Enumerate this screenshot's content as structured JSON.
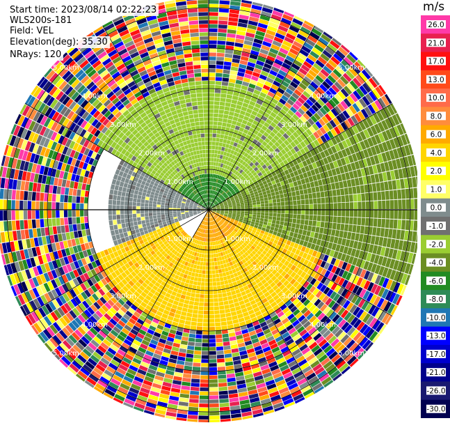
{
  "header": {
    "start_time": "Start time: 2023/08/14 02:22:23",
    "instrument": "WLS200s-181",
    "field": "Field: VEL",
    "elevation": "Elevation(deg): 35.30",
    "nrays": "NRays: 120"
  },
  "colorbar": {
    "unit": "m/s",
    "ticks": [
      "26.0",
      "21.0",
      "17.0",
      "13.0",
      "10.0",
      "8.0",
      "6.0",
      "4.0",
      "2.0",
      "1.0",
      "0.0",
      "-1.0",
      "-2.0",
      "-4.0",
      "-6.0",
      "-8.0",
      "-10.0",
      "-13.0",
      "-17.0",
      "-21.0",
      "-26.0",
      "-30.0"
    ],
    "colors": [
      "#ff3aa8",
      "#e8204f",
      "#ff1010",
      "#ff4a1a",
      "#ff6b4a",
      "#ff8c3c",
      "#ffaa00",
      "#ffd500",
      "#ffff00",
      "#ffff66",
      "#7f8c8d",
      "#707070",
      "#9acd32",
      "#6b8e23",
      "#228b22",
      "#2e8b57",
      "#1f77b4",
      "#0000ff",
      "#0000cd",
      "#00008b",
      "#191970",
      "#000050"
    ]
  },
  "chart_data": {
    "type": "heatmap",
    "subtype": "polar PPI lidar radial velocity",
    "field": "VEL",
    "units": "m/s",
    "n_rays": 120,
    "elevation_deg": 35.3,
    "range_rings_km": [
      1.0,
      2.0,
      3.0,
      4.0,
      5.0
    ],
    "ring_label": "km",
    "sector_pattern": [
      {
        "azimuth_from_deg": 300,
        "azimuth_to_deg": 60,
        "range_km": [
          0,
          0.9
        ],
        "value_ms": -6.0
      },
      {
        "azimuth_from_deg": 300,
        "azimuth_to_deg": 60,
        "range_km": [
          0.9,
          3.2
        ],
        "value_ms": -2.0
      },
      {
        "azimuth_from_deg": 60,
        "azimuth_to_deg": 110,
        "range_km": [
          0,
          5.6
        ],
        "value_ms": -4.0
      },
      {
        "azimuth_from_deg": 110,
        "azimuth_to_deg": 210,
        "range_km": [
          0,
          0.8
        ],
        "value_ms": 6.0
      },
      {
        "azimuth_from_deg": 110,
        "azimuth_to_deg": 250,
        "range_km": [
          0.8,
          3.0
        ],
        "value_ms": 4.0
      },
      {
        "azimuth_from_deg": 250,
        "azimuth_to_deg": 300,
        "range_km": [
          0,
          2.5
        ],
        "value_ms": 0.0
      },
      {
        "azimuth_from_deg": 0,
        "azimuth_to_deg": 360,
        "range_km": [
          3.0,
          6.2
        ],
        "value_ms": "noise"
      }
    ]
  }
}
